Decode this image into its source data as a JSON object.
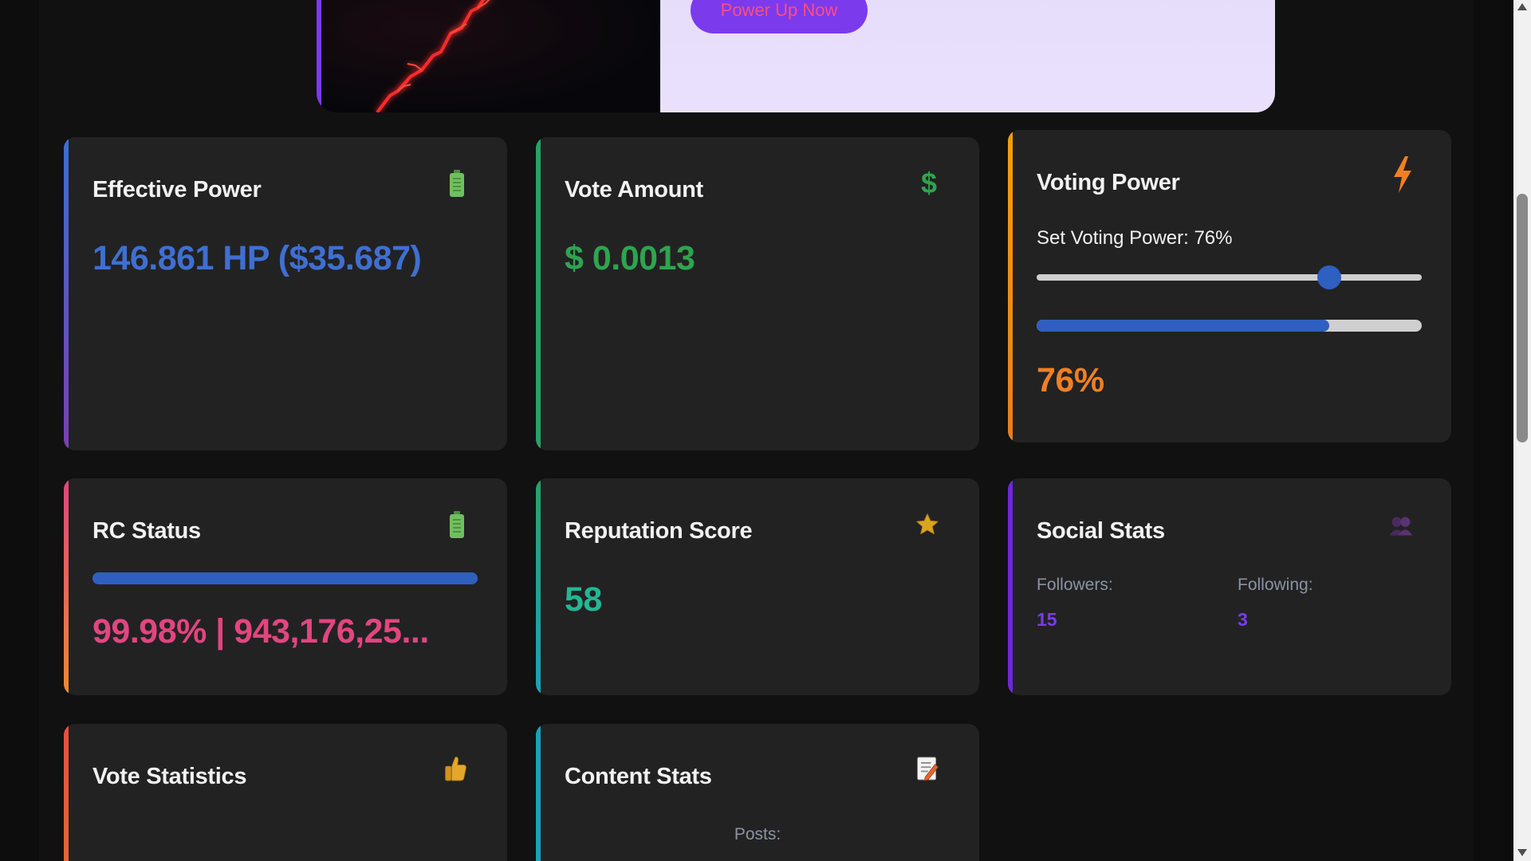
{
  "banner": {
    "button_label": "Power Up Now"
  },
  "cards": {
    "effective_power": {
      "title": "Effective Power",
      "value": "146.861 HP ($35.687)",
      "icon": "battery-icon"
    },
    "vote_amount": {
      "title": "Vote Amount",
      "value": "$ 0.0013",
      "icon": "dollar-icon"
    },
    "voting_power": {
      "title": "Voting Power",
      "slider_label": "Set Voting Power: 76%",
      "value": "76%",
      "slider_fraction": 0.76,
      "progress_fraction": 0.76,
      "icon": "lightning-icon"
    },
    "rc_status": {
      "title": "RC Status",
      "value": "99.98% | 943,176,25...",
      "progress_fraction": 0.9998,
      "icon": "battery-icon"
    },
    "reputation": {
      "title": "Reputation Score",
      "value": "58",
      "icon": "star-icon"
    },
    "social": {
      "title": "Social Stats",
      "followers_label": "Followers:",
      "followers_value": "15",
      "following_label": "Following:",
      "following_value": "3",
      "icon": "busts-icon"
    },
    "vote_stats": {
      "title": "Vote Statistics",
      "icon": "thumbs-up-icon"
    },
    "content_stats": {
      "title": "Content Stats",
      "posts_label": "Posts:",
      "icon": "memo-icon"
    }
  },
  "colors": {
    "blue_value": "#3f6fd1",
    "green_value": "#2ea44f",
    "orange_value": "#f07f22",
    "pink_value": "#e2457f",
    "teal_value": "#23b794",
    "purple_value": "#7c3aed"
  }
}
